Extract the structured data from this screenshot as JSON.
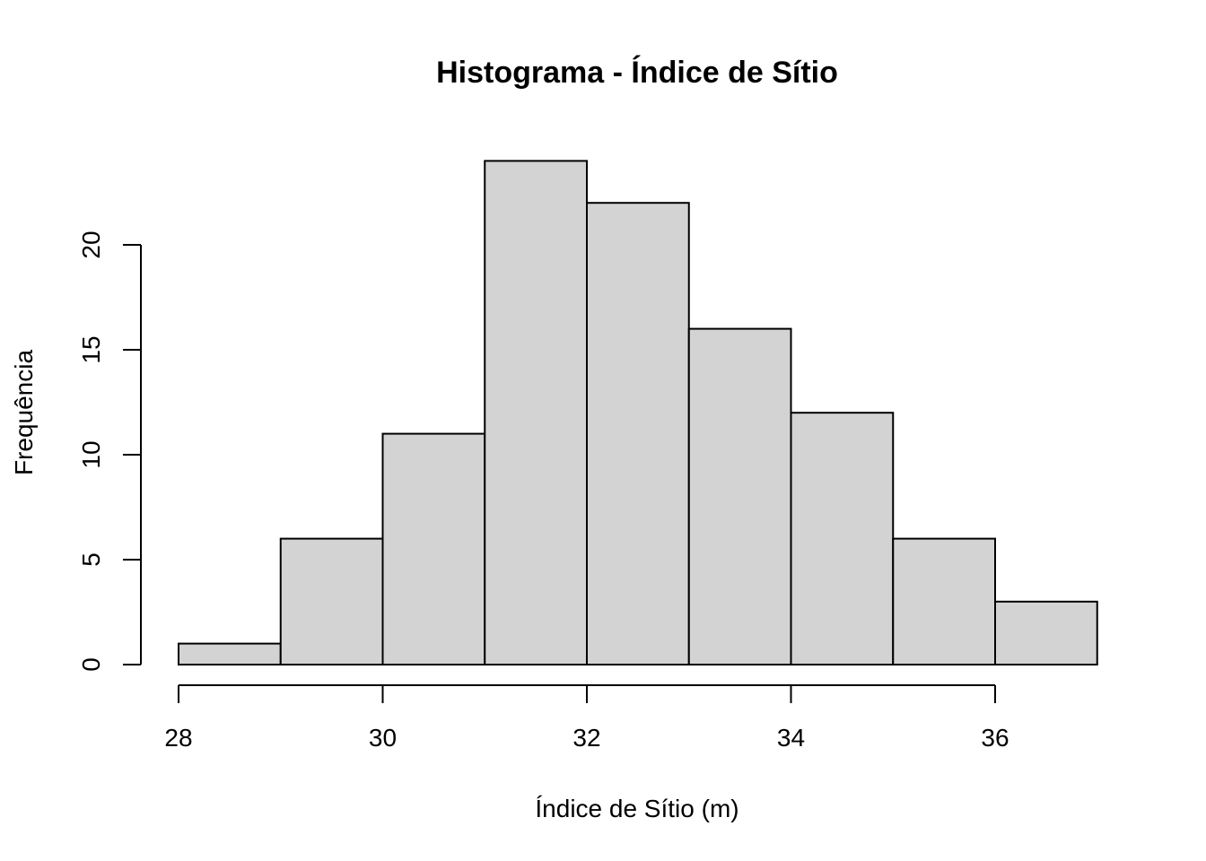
{
  "chart_data": {
    "type": "bar",
    "title": "Histograma - Índice de Sítio",
    "xlabel": "Índice de Sítio (m)",
    "ylabel": "Frequência",
    "bins": [
      {
        "start": 28,
        "end": 29,
        "count": 1
      },
      {
        "start": 29,
        "end": 30,
        "count": 6
      },
      {
        "start": 30,
        "end": 31,
        "count": 11
      },
      {
        "start": 31,
        "end": 32,
        "count": 24
      },
      {
        "start": 32,
        "end": 33,
        "count": 22
      },
      {
        "start": 33,
        "end": 34,
        "count": 16
      },
      {
        "start": 34,
        "end": 35,
        "count": 12
      },
      {
        "start": 35,
        "end": 36,
        "count": 6
      },
      {
        "start": 36,
        "end": 37,
        "count": 3
      }
    ],
    "x_ticks": [
      "28",
      "30",
      "32",
      "34",
      "36"
    ],
    "y_ticks": [
      "0",
      "5",
      "10",
      "15",
      "20"
    ],
    "xlim": [
      28,
      37
    ],
    "ylim": [
      0,
      24
    ],
    "bar_color": "#d3d3d3",
    "grid": false,
    "legend": false
  }
}
